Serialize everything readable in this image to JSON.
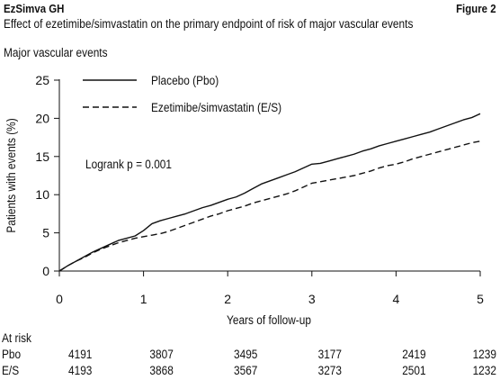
{
  "header": {
    "study": "EzSimva GH",
    "figure_label": "Figure 2"
  },
  "subtitle": "Effect of ezetimibe/simvastatin on the primary endpoint of risk of major vascular events",
  "panel_title": "Major vascular events",
  "colors": {
    "line": "#111111",
    "background": "#ffffff"
  },
  "chart_data": {
    "type": "line",
    "title": "Major vascular events",
    "xlabel": "Years of follow-up",
    "ylabel": "Patients with events (%)",
    "xlim": [
      0,
      5
    ],
    "ylim": [
      0,
      25
    ],
    "xticks": [
      "0",
      "1",
      "2",
      "3",
      "4",
      "5"
    ],
    "yticks": [
      "0",
      "5",
      "10",
      "15",
      "20",
      "25"
    ],
    "legend_position": "top-center",
    "annotation": "Logrank p = 0.001",
    "series": [
      {
        "name": "Placebo (Pbo)",
        "style": "solid",
        "x": [
          0,
          0.1,
          0.2,
          0.3,
          0.4,
          0.5,
          0.6,
          0.7,
          0.8,
          0.9,
          1.0,
          1.1,
          1.2,
          1.3,
          1.4,
          1.5,
          1.6,
          1.7,
          1.8,
          1.9,
          2.0,
          2.1,
          2.2,
          2.3,
          2.4,
          2.5,
          2.6,
          2.7,
          2.8,
          2.9,
          3.0,
          3.1,
          3.2,
          3.3,
          3.4,
          3.5,
          3.6,
          3.7,
          3.8,
          3.9,
          4.0,
          4.1,
          4.2,
          4.3,
          4.4,
          4.5,
          4.6,
          4.7,
          4.8,
          4.9,
          5.0
        ],
        "y": [
          0,
          0.7,
          1.3,
          1.9,
          2.5,
          3.0,
          3.5,
          4.0,
          4.3,
          4.6,
          5.3,
          6.2,
          6.6,
          6.9,
          7.2,
          7.5,
          7.9,
          8.3,
          8.6,
          9.0,
          9.4,
          9.7,
          10.2,
          10.8,
          11.4,
          11.8,
          12.2,
          12.6,
          13.0,
          13.5,
          14.0,
          14.1,
          14.4,
          14.7,
          15.0,
          15.3,
          15.7,
          16.0,
          16.4,
          16.7,
          17.0,
          17.3,
          17.6,
          17.9,
          18.2,
          18.6,
          19.0,
          19.4,
          19.8,
          20.1,
          20.6
        ]
      },
      {
        "name": "Ezetimibe/simvastatin (E/S)",
        "style": "dashed",
        "x": [
          0,
          0.1,
          0.2,
          0.3,
          0.4,
          0.5,
          0.6,
          0.7,
          0.8,
          0.9,
          1.0,
          1.1,
          1.2,
          1.3,
          1.4,
          1.5,
          1.6,
          1.7,
          1.8,
          1.9,
          2.0,
          2.1,
          2.2,
          2.3,
          2.4,
          2.5,
          2.6,
          2.7,
          2.8,
          2.9,
          3.0,
          3.1,
          3.2,
          3.3,
          3.4,
          3.5,
          3.6,
          3.7,
          3.8,
          3.9,
          4.0,
          4.1,
          4.2,
          4.3,
          4.4,
          4.5,
          4.6,
          4.7,
          4.8,
          4.9,
          5.0
        ],
        "y": [
          0,
          0.7,
          1.3,
          1.8,
          2.4,
          2.9,
          3.3,
          3.7,
          4.0,
          4.3,
          4.5,
          4.7,
          4.9,
          5.2,
          5.6,
          6.0,
          6.4,
          6.8,
          7.2,
          7.5,
          7.9,
          8.2,
          8.5,
          8.9,
          9.2,
          9.5,
          9.8,
          10.1,
          10.5,
          11.0,
          11.5,
          11.7,
          11.9,
          12.1,
          12.3,
          12.5,
          12.8,
          13.1,
          13.5,
          13.8,
          14.0,
          14.3,
          14.7,
          15.0,
          15.3,
          15.6,
          15.9,
          16.2,
          16.5,
          16.8,
          17.0
        ]
      }
    ]
  },
  "at_risk": {
    "label": "At risk",
    "rows": [
      {
        "group": "Pbo",
        "values": [
          "4191",
          "3807",
          "3495",
          "3177",
          "2419",
          "1239"
        ]
      },
      {
        "group": "E/S",
        "values": [
          "4193",
          "3868",
          "3567",
          "3273",
          "2501",
          "1232"
        ]
      }
    ]
  }
}
